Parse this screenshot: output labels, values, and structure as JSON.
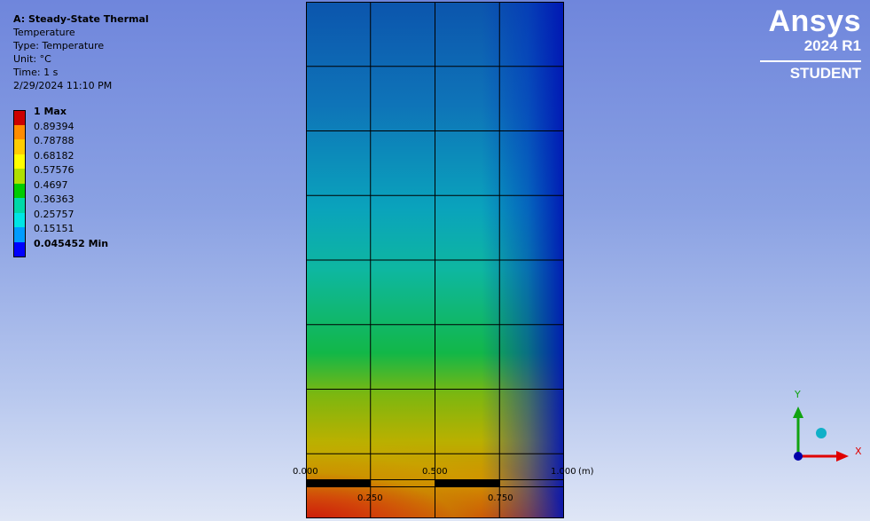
{
  "info": {
    "title": "A: Steady-State Thermal",
    "quantity": "Temperature",
    "type": "Type: Temperature",
    "unit": "Unit: °C",
    "time": "Time: 1 s",
    "date": "2/29/2024 11:10 PM"
  },
  "legend": {
    "items": [
      {
        "label": "1 Max",
        "color": "#cc0000",
        "bold": true
      },
      {
        "label": "0.89394",
        "color": "#ff8c00",
        "bold": false
      },
      {
        "label": "0.78788",
        "color": "#ffcc00",
        "bold": false
      },
      {
        "label": "0.68182",
        "color": "#ffff00",
        "bold": false
      },
      {
        "label": "0.57576",
        "color": "#b0e000",
        "bold": false
      },
      {
        "label": "0.4697",
        "color": "#00cc00",
        "bold": false
      },
      {
        "label": "0.36363",
        "color": "#00d8a8",
        "bold": false
      },
      {
        "label": "0.25757",
        "color": "#00e5e5",
        "bold": false
      },
      {
        "label": "0.15151",
        "color": "#009cff",
        "bold": false
      },
      {
        "label": "0.045452 Min",
        "color": "#0000ff",
        "bold": true
      }
    ]
  },
  "logo": {
    "brand": "Ansys",
    "version": "2024 R1",
    "edition": "STUDENT"
  },
  "mesh": {
    "columns": 4,
    "rows": 8,
    "line_color": "#000000"
  },
  "scale_bar": {
    "label_0": "0.000",
    "label_1": "0.250",
    "label_2": "0.500",
    "label_3": "0.750",
    "label_4": "1.000",
    "unit": "(m)"
  },
  "triad": {
    "x_label": "X",
    "y_label": "Y",
    "x_color": "#e00000",
    "y_color": "#11a311",
    "origin_color": "#0000aa",
    "iso_color": "#10b0c8"
  }
}
